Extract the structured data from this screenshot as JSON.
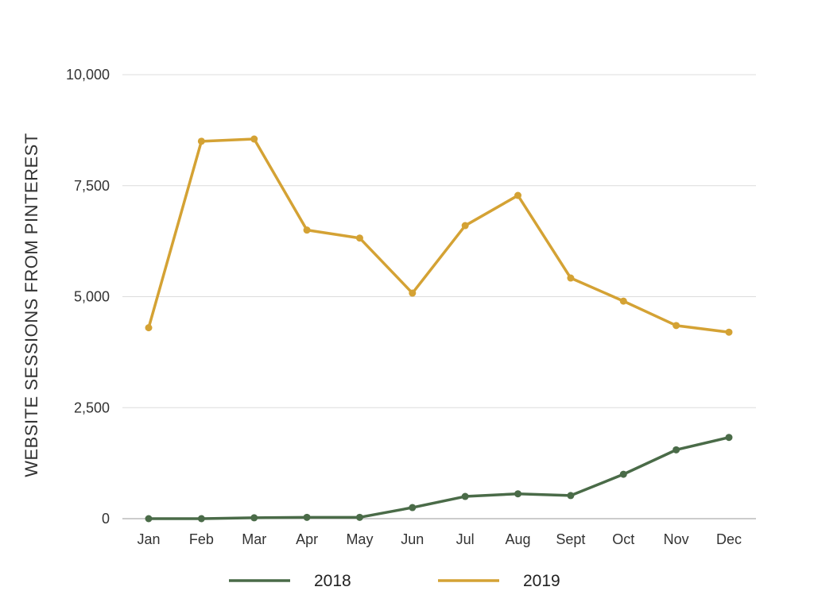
{
  "chart_data": {
    "type": "line",
    "categories": [
      "Jan",
      "Feb",
      "Mar",
      "Apr",
      "May",
      "Jun",
      "Jul",
      "Aug",
      "Sept",
      "Oct",
      "Nov",
      "Dec"
    ],
    "series": [
      {
        "name": "2018",
        "color": "#4a6b48",
        "values": [
          0,
          0,
          20,
          30,
          30,
          250,
          500,
          560,
          520,
          1000,
          1550,
          1830
        ]
      },
      {
        "name": "2019",
        "color": "#d4a234",
        "values": [
          4300,
          8500,
          8550,
          6500,
          6320,
          5080,
          6600,
          7280,
          5420,
          4900,
          4350,
          4200
        ]
      }
    ],
    "title": "",
    "xlabel": "",
    "ylabel": "WEBSITE SESSIONS FROM PINTEREST",
    "ylim": [
      0,
      10000
    ],
    "yticks": [
      0,
      2500,
      5000,
      7500,
      10000
    ],
    "ytick_labels": [
      "0",
      "2,500",
      "5,000",
      "7,500",
      "10,000"
    ],
    "grid": "horizontal",
    "legend_position": "bottom"
  }
}
